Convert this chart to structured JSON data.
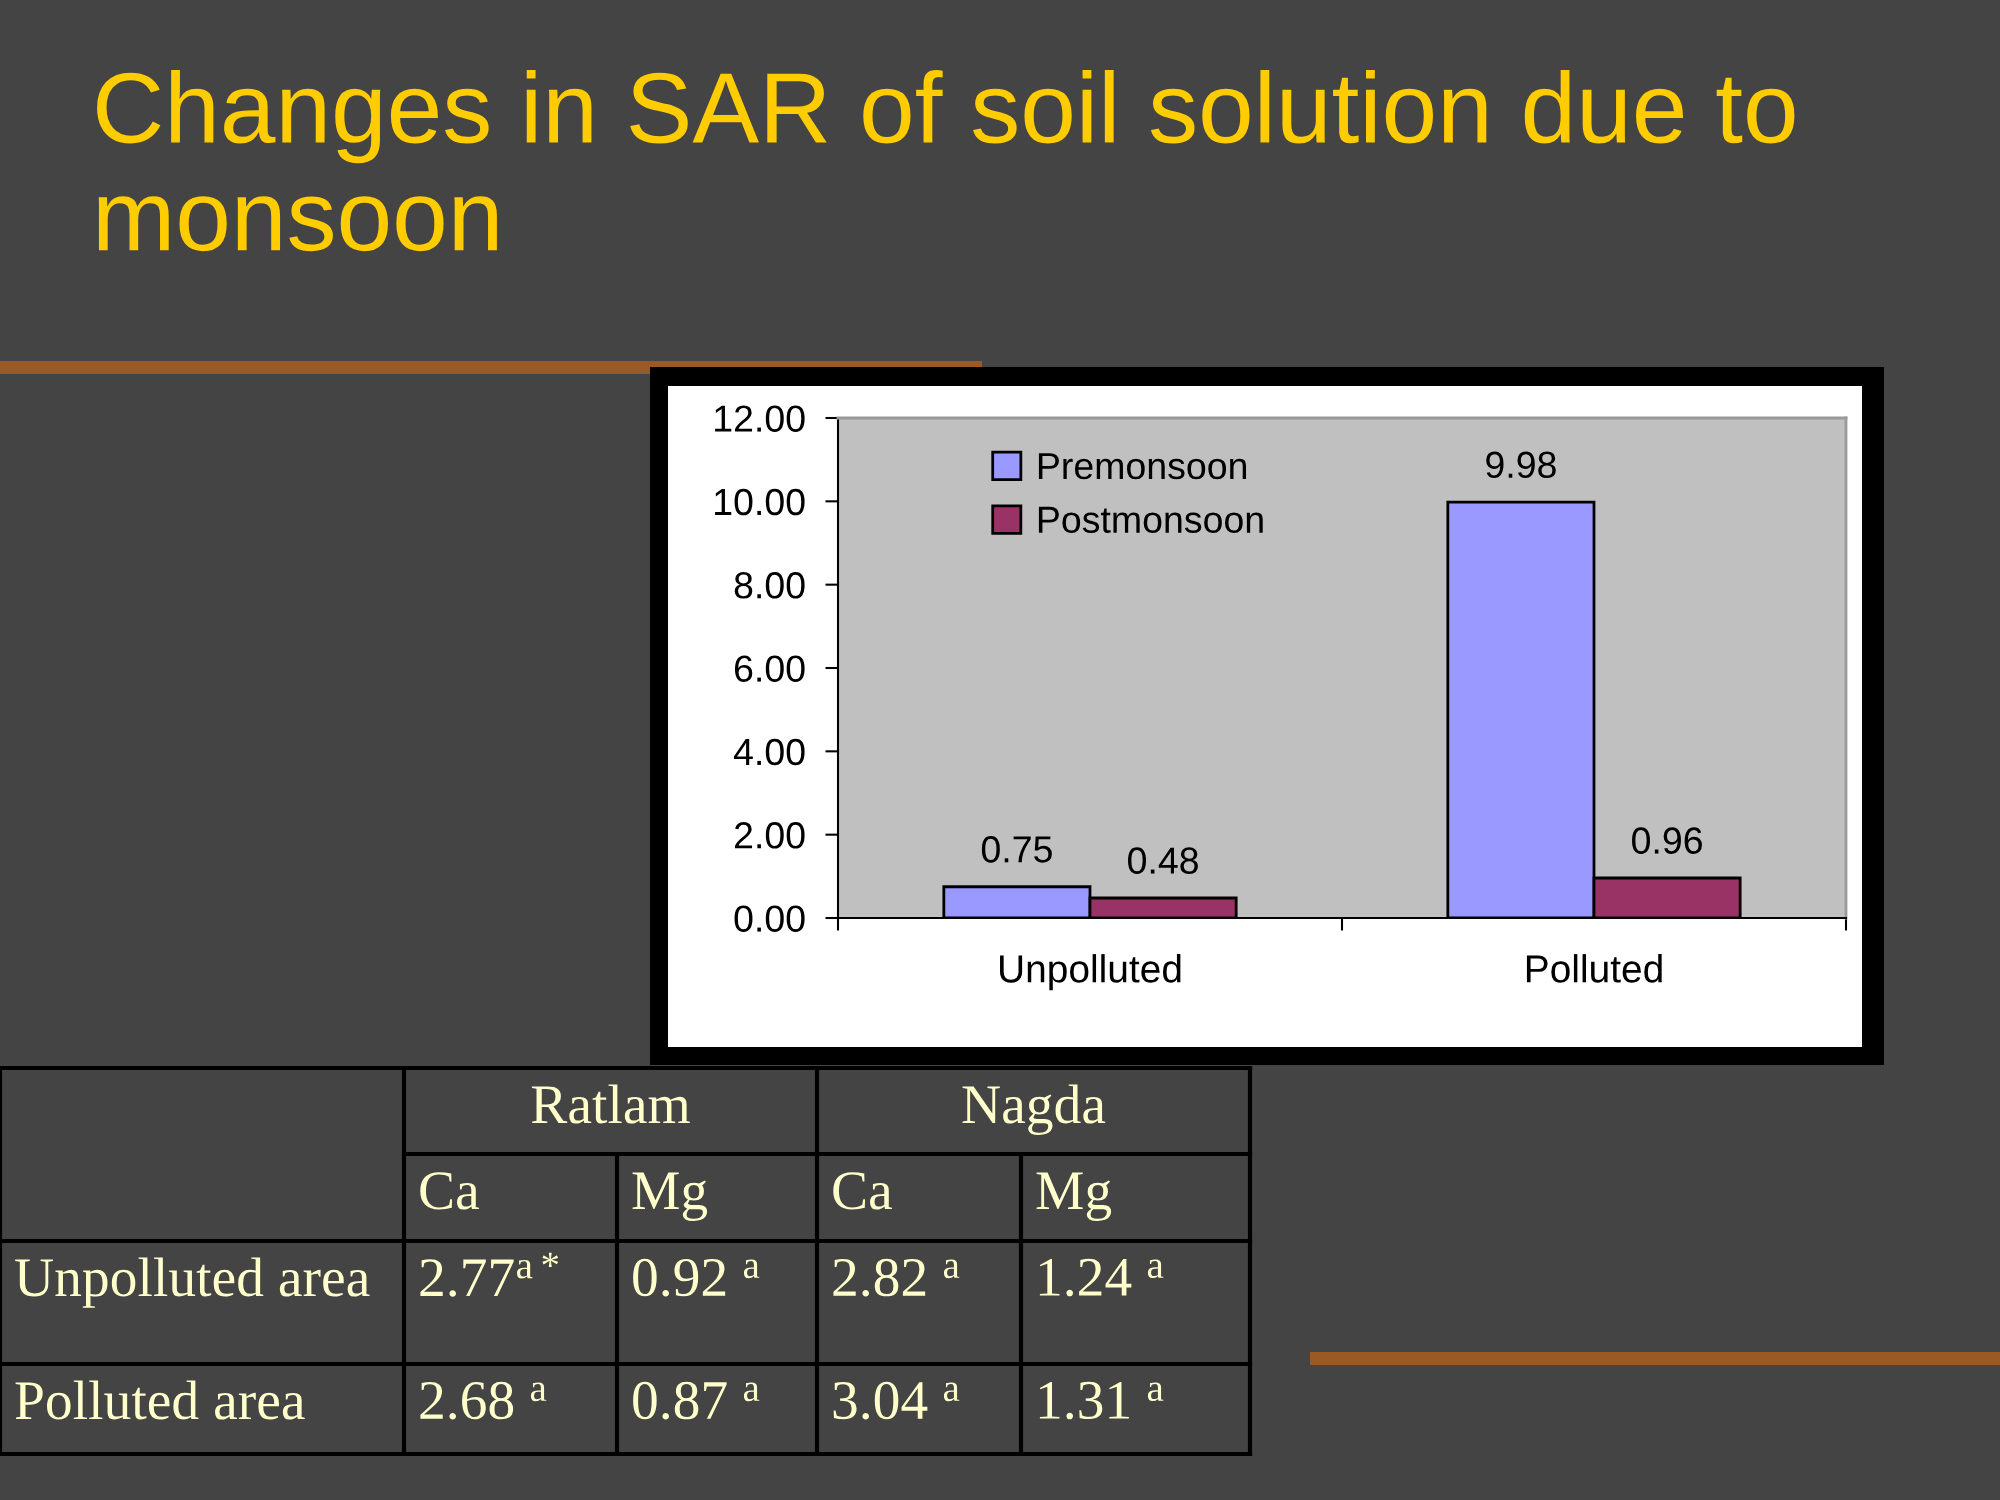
{
  "chart_data": [
    {
      "type": "bar",
      "title": "Changes in SAR of soil solution due to monsoon",
      "categories": [
        "Unpolluted",
        "Polluted"
      ],
      "series": [
        {
          "name": "Premonsoon",
          "color": "#9999ff",
          "values": [
            0.75,
            9.98
          ]
        },
        {
          "name": "Postmonsoon",
          "color": "#993366",
          "values": [
            0.48,
            0.96
          ]
        }
      ],
      "ylim": [
        0,
        12
      ],
      "yticks": [
        {
          "value": 0,
          "label": "0.00"
        },
        {
          "value": 2,
          "label": "2.00"
        },
        {
          "value": 4,
          "label": "4.00"
        },
        {
          "value": 6,
          "label": "6.00"
        },
        {
          "value": 8,
          "label": "8.00"
        },
        {
          "value": 10,
          "label": "10.00"
        },
        {
          "value": 12,
          "label": "12.00"
        }
      ],
      "data_labels": true,
      "legend": "top left"
    },
    {
      "type": "other",
      "annotations": [
        "Ratlam",
        "Nagda",
        "Ca",
        "Mg",
        "Ca",
        "Mg",
        "Unpolluted area",
        "2.77$^{a*}$",
        "0.92 $^{a}$",
        "2.82 $^{a}$",
        "1.24 $^{a}$",
        "Polluted area",
        "2.68 $^{a}$",
        "0.87 $^{a}$",
        "3.04 $^{a}$",
        "1.31 $^{a}$"
      ]
    }
  ]
}
